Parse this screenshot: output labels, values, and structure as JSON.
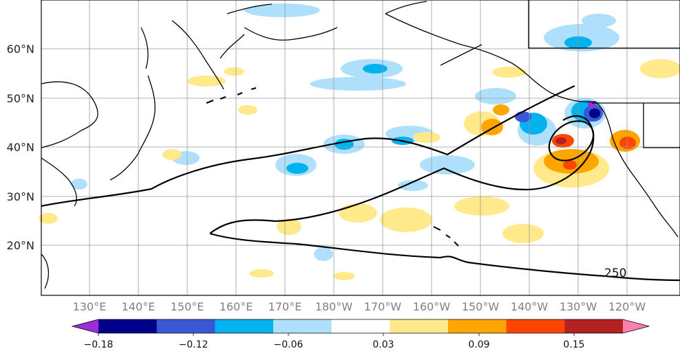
{
  "map": {
    "lat_labels": [
      "60°N",
      "50°N",
      "40°N",
      "30°N",
      "20°N"
    ],
    "lon_labels": [
      "130°E",
      "140°E",
      "150°E",
      "160°E",
      "170°E",
      "180°W",
      "170°W",
      "160°W",
      "150°W",
      "140°W",
      "130°W",
      "120°W"
    ],
    "contour_label": "250"
  },
  "colorbar": {
    "tick_labels": [
      "−0.18",
      "−0.12",
      "−0.06",
      "0.03",
      "0.09",
      "0.15"
    ],
    "colors": [
      "#9a2fd6",
      "#00008b",
      "#3a57d6",
      "#00b2ee",
      "#aee0fb",
      "#ffffff",
      "#ffe98a",
      "#ffa500",
      "#ff4500",
      "#b22222",
      "#ff7eb2"
    ]
  },
  "colors": {
    "frame": "#000000",
    "grid": "#999999",
    "contour": "#000000"
  }
}
